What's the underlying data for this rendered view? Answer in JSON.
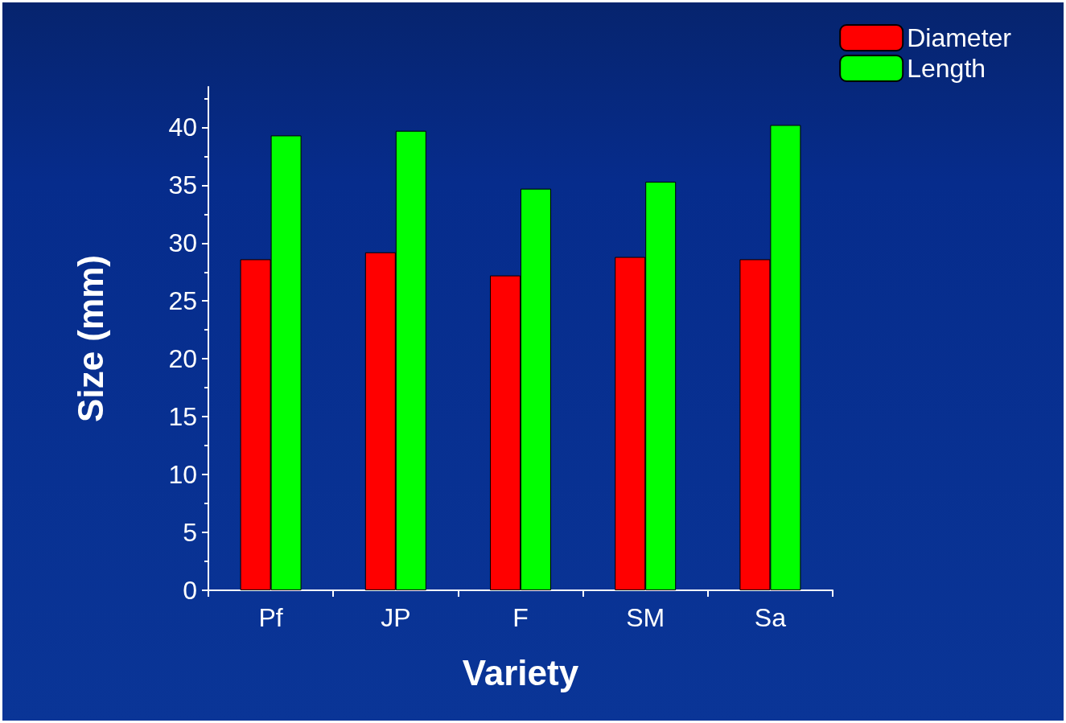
{
  "chart_data": {
    "type": "bar",
    "xlabel": "Variety",
    "ylabel": "Size (mm)",
    "categories": [
      "Pf",
      "JP",
      "F",
      "SM",
      "Sa"
    ],
    "series": [
      {
        "name": "Diameter",
        "color": "#ff0000",
        "values": [
          28.6,
          29.2,
          27.2,
          28.8,
          28.6
        ]
      },
      {
        "name": "Length",
        "color": "#00ff00",
        "values": [
          39.3,
          39.7,
          34.7,
          35.3,
          40.2
        ]
      }
    ],
    "ylim": [
      0,
      43.5
    ],
    "yticks": [
      0,
      5,
      10,
      15,
      20,
      25,
      30,
      35,
      40
    ],
    "grid": false,
    "legend": "top right"
  }
}
